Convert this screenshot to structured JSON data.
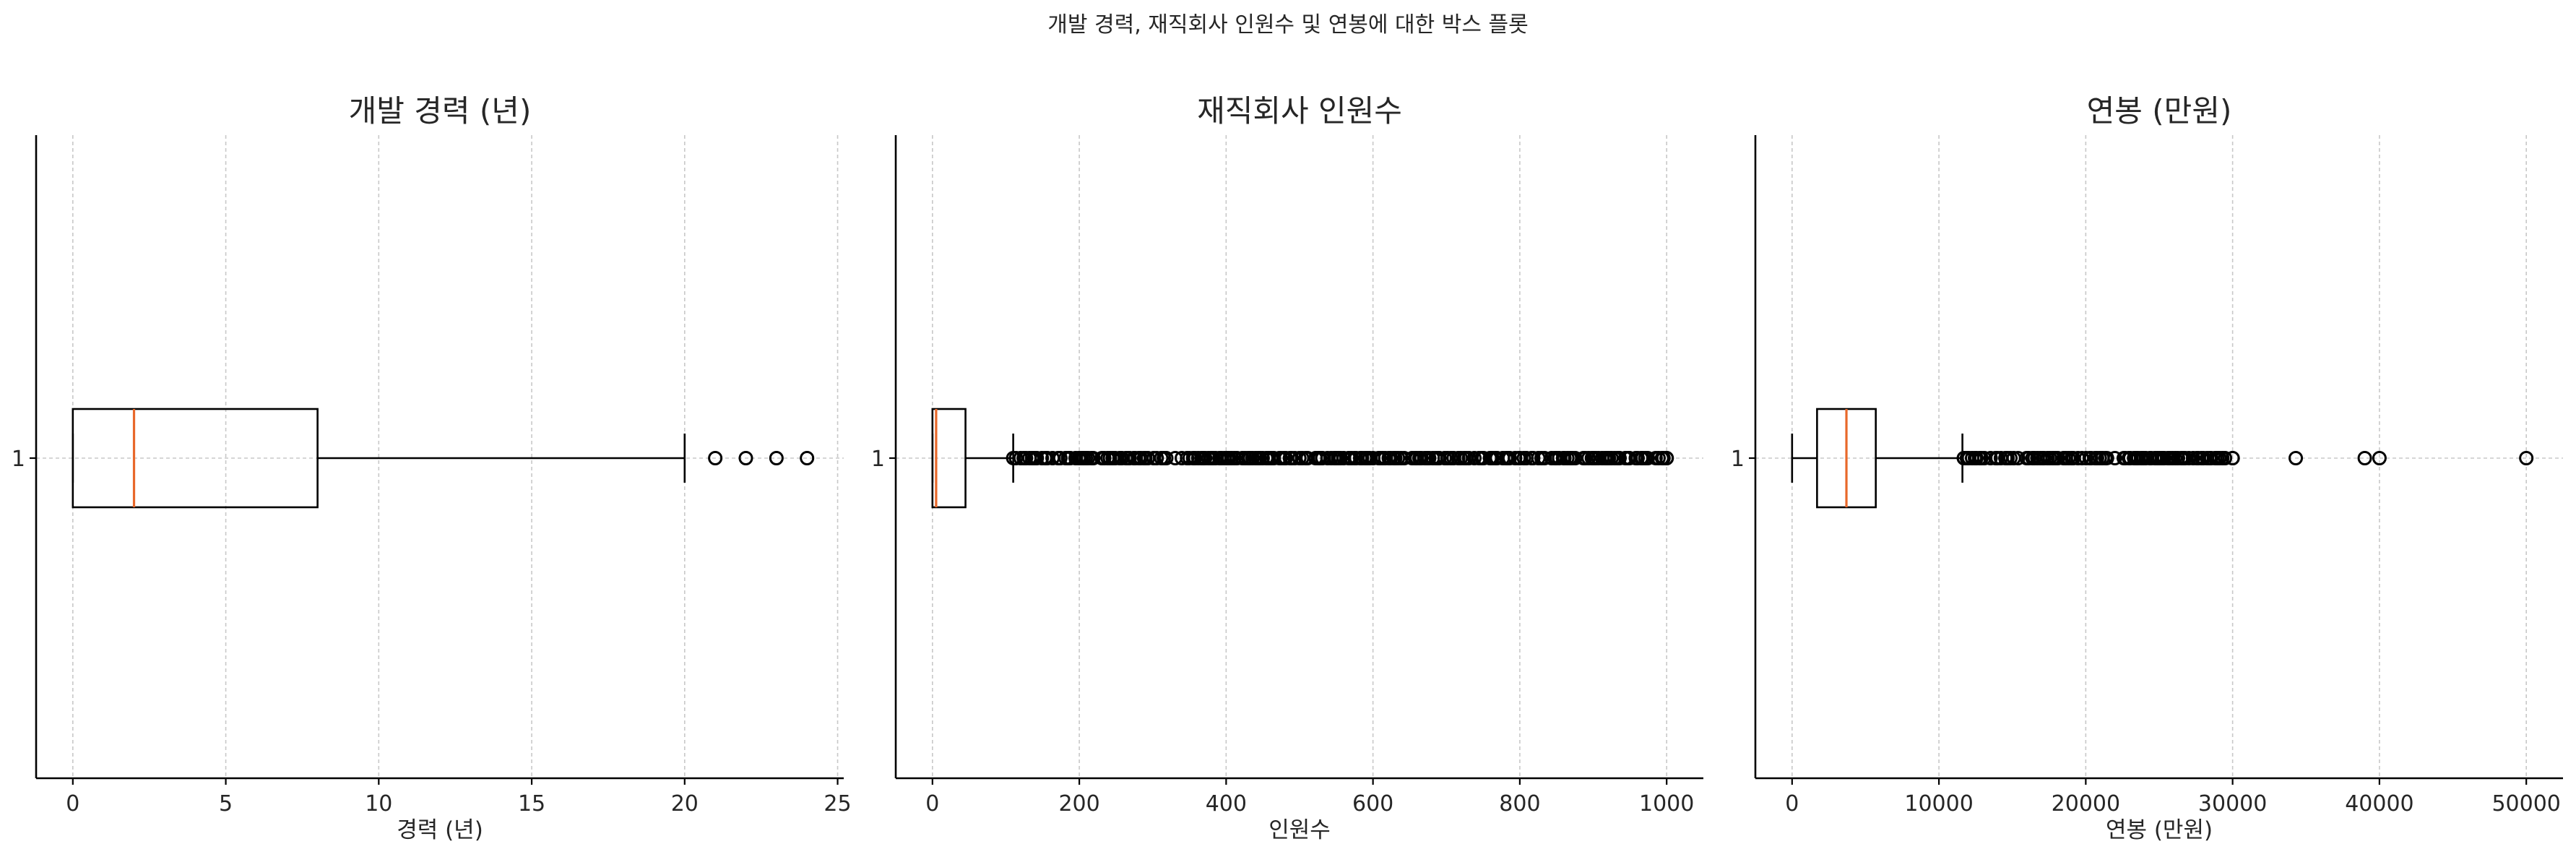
{
  "suptitle": "개발 경력, 재직회사 인원수 및 연봉에 대한 박스 플롯",
  "chart_data": [
    {
      "type": "box",
      "orientation": "horizontal",
      "title": "개발 경력 (년)",
      "xlabel": "경력 (년)",
      "ytick_labels": [
        "1"
      ],
      "xlim": [
        -1.2,
        25.2
      ],
      "xticks": [
        0,
        5,
        10,
        15,
        20,
        25
      ],
      "xtick_labels": [
        "0",
        "5",
        "10",
        "15",
        "20",
        "25"
      ],
      "grid": true,
      "stats": {
        "whisker_low": 0,
        "q1": 0,
        "median": 2,
        "q3": 8,
        "whisker_high": 20
      },
      "fliers": [
        21,
        22,
        23,
        24
      ],
      "median_color": "#e8682a"
    },
    {
      "type": "box",
      "orientation": "horizontal",
      "title": "재직회사 인원수",
      "xlabel": "인원수",
      "ytick_labels": [
        "1"
      ],
      "xlim": [
        -50,
        1050
      ],
      "xticks": [
        0,
        200,
        400,
        600,
        800,
        1000
      ],
      "xtick_labels": [
        "0",
        "200",
        "400",
        "600",
        "800",
        "1000"
      ],
      "grid": true,
      "stats": {
        "whisker_low": 0,
        "q1": 0,
        "median": 5,
        "q3": 45,
        "whisker_high": 110
      },
      "fliers_range": [
        110,
        1000
      ],
      "median_color": "#e8682a"
    },
    {
      "type": "box",
      "orientation": "horizontal",
      "title": "연봉 (만원)",
      "xlabel": "연봉 (만원)",
      "ytick_labels": [
        "1"
      ],
      "xlim": [
        -2500,
        52500
      ],
      "xticks": [
        0,
        10000,
        20000,
        30000,
        40000,
        50000
      ],
      "xtick_labels": [
        "0",
        "10000",
        "20000",
        "30000",
        "40000",
        "50000"
      ],
      "grid": true,
      "stats": {
        "whisker_low": 0,
        "q1": 1700,
        "median": 3700,
        "q3": 5700,
        "whisker_high": 11600
      },
      "fliers_range": [
        11700,
        30000
      ],
      "fliers": [
        34300,
        39000,
        40000,
        50000
      ],
      "median_color": "#e8682a"
    }
  ]
}
